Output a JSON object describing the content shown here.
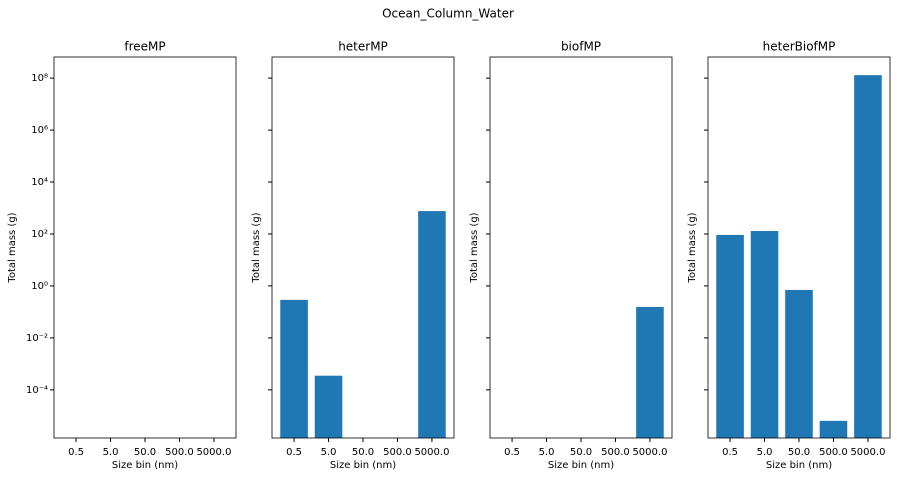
{
  "chart_data": {
    "type": "bar",
    "title": "Ocean_Column_Water",
    "log_y": true,
    "color": "#1f77b4",
    "xlabel": "Size bin (nm)",
    "ylabel": "Total mass (g)",
    "categories": [
      "0.5",
      "5.0",
      "50.0",
      "500.0",
      "5000.0"
    ],
    "ylim": [
      1.4e-06,
      650000000.0
    ],
    "yticks": [
      {
        "value": 0.0001,
        "label": "10⁻⁴"
      },
      {
        "value": 0.01,
        "label": "10⁻²"
      },
      {
        "value": 1,
        "label": "10⁰"
      },
      {
        "value": 100,
        "label": "10²"
      },
      {
        "value": 10000,
        "label": "10⁴"
      },
      {
        "value": 1000000,
        "label": "10⁶"
      },
      {
        "value": 100000000,
        "label": "10⁸"
      }
    ],
    "panels": [
      {
        "title": "freeMP",
        "values": [
          0,
          0,
          0,
          0,
          0
        ]
      },
      {
        "title": "heterMP",
        "values": [
          0.29,
          0.00035,
          0,
          0,
          760
        ]
      },
      {
        "title": "biofMP",
        "values": [
          0,
          0,
          0,
          0,
          0.155
        ]
      },
      {
        "title": "heterBiofMP",
        "values": [
          92,
          130,
          0.7,
          6.4e-06,
          130000000
        ]
      }
    ]
  }
}
